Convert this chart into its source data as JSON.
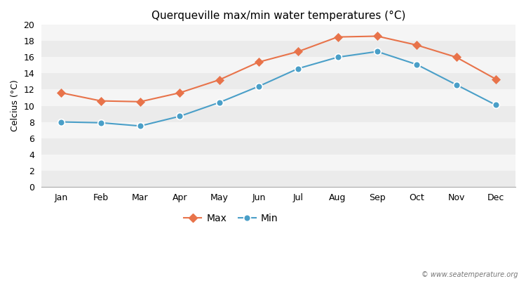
{
  "title": "Querqueville max/min water temperatures (°C)",
  "ylabel": "Celcius (°C)",
  "months": [
    "Jan",
    "Feb",
    "Mar",
    "Apr",
    "May",
    "Jun",
    "Jul",
    "Aug",
    "Sep",
    "Oct",
    "Nov",
    "Dec"
  ],
  "max_temps": [
    11.6,
    10.6,
    10.5,
    11.6,
    13.2,
    15.4,
    16.7,
    18.5,
    18.6,
    17.5,
    16.0,
    13.3
  ],
  "min_temps": [
    8.0,
    7.9,
    7.5,
    8.7,
    10.4,
    12.4,
    14.6,
    16.0,
    16.7,
    15.1,
    12.6,
    10.1
  ],
  "max_color": "#e8734a",
  "min_color": "#4a9fc8",
  "fig_background": "#ffffff",
  "band_light": "#ebebeb",
  "band_white": "#f5f5f5",
  "ylim": [
    0,
    20
  ],
  "yticks": [
    0,
    2,
    4,
    6,
    8,
    10,
    12,
    14,
    16,
    18,
    20
  ],
  "watermark": "© www.seatemperature.org",
  "legend_labels": [
    "Max",
    "Min"
  ]
}
